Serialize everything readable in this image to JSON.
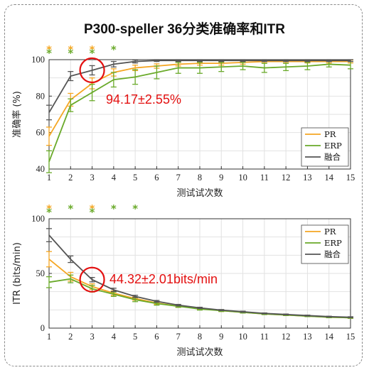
{
  "title": "P300-speller 36分类准确率和ITR",
  "colors": {
    "PR": "#f5a623",
    "ERP": "#6aaa2a",
    "Fusion": "#555555",
    "highlight": "#e31010"
  },
  "chart_data": [
    {
      "type": "line",
      "xlabel": "测试试次数",
      "ylabel": "准确率  (%)",
      "x": [
        1,
        2,
        3,
        4,
        5,
        6,
        7,
        8,
        9,
        10,
        11,
        12,
        13,
        14,
        15
      ],
      "xlim": [
        1,
        15
      ],
      "ylim": [
        40,
        100
      ],
      "yticks": [
        40,
        60,
        80,
        100
      ],
      "grid": true,
      "legend_position": "bottom-right",
      "series": [
        {
          "name": "PR",
          "color": "#f5a623",
          "values": [
            58,
            78,
            87,
            93,
            95.5,
            96.5,
            97.5,
            98,
            98,
            98.5,
            99,
            99,
            99,
            99,
            99
          ],
          "err": [
            5,
            3.5,
            3,
            2,
            1.5,
            1.2,
            1,
            1,
            1,
            1,
            0.8,
            0.8,
            0.8,
            0.8,
            0.8
          ]
        },
        {
          "name": "ERP",
          "color": "#6aaa2a",
          "values": [
            44,
            75,
            82,
            89,
            90.5,
            93,
            95.5,
            95.5,
            96,
            96.5,
            95.5,
            96,
            96.5,
            97.5,
            97
          ],
          "err": [
            6,
            3.5,
            4.5,
            4,
            4,
            3.5,
            3,
            3,
            2.5,
            2,
            2.5,
            2,
            2,
            1.5,
            2
          ]
        },
        {
          "name": "融合",
          "color": "#555555",
          "values": [
            71,
            91,
            94.17,
            97.5,
            99,
            99.5,
            99.5,
            99.5,
            99.5,
            99.5,
            99.5,
            99.5,
            99.5,
            99.5,
            99.5
          ],
          "err": [
            4,
            2.5,
            2.55,
            1.5,
            0.8,
            0.5,
            0.5,
            0.5,
            0.5,
            0.5,
            0.5,
            0.5,
            0.5,
            0.5,
            0.5
          ]
        }
      ],
      "significance": [
        {
          "x": 1,
          "stars": [
            "#f5a623",
            "#6aaa2a"
          ]
        },
        {
          "x": 2,
          "stars": [
            "#f5a623",
            "#6aaa2a"
          ]
        },
        {
          "x": 3,
          "stars": [
            "#f5a623",
            "#6aaa2a"
          ]
        },
        {
          "x": 4,
          "stars": [
            "#6aaa2a"
          ]
        }
      ],
      "annotation": {
        "text": "94.17±2.55%",
        "x": 3,
        "y": 94.17
      }
    },
    {
      "type": "line",
      "xlabel": "测试试次数",
      "ylabel": "ITR (bits/min)",
      "x": [
        1,
        2,
        3,
        4,
        5,
        6,
        7,
        8,
        9,
        10,
        11,
        12,
        13,
        14,
        15
      ],
      "xlim": [
        1,
        15
      ],
      "ylim": [
        0,
        100
      ],
      "yticks": [
        0,
        50,
        100
      ],
      "grid": true,
      "legend_position": "top-right",
      "series": [
        {
          "name": "PR",
          "color": "#f5a623",
          "values": [
            63,
            47,
            38,
            32,
            27,
            23,
            20,
            18,
            16,
            14.5,
            13,
            12,
            11,
            10,
            9.5
          ],
          "err": [
            7,
            4,
            2.5,
            2,
            1.5,
            1.2,
            1,
            0.8,
            0.8,
            0.6,
            0.6,
            0.5,
            0.5,
            0.5,
            0.5
          ]
        },
        {
          "name": "ERP",
          "color": "#6aaa2a",
          "values": [
            42,
            45,
            36,
            31,
            26,
            22.5,
            20,
            17.5,
            16,
            14.5,
            13,
            12,
            11,
            10,
            9.5
          ],
          "err": [
            5,
            3.5,
            3,
            2,
            1.8,
            1.5,
            1,
            1,
            0.8,
            0.7,
            0.6,
            0.5,
            0.5,
            0.5,
            0.5
          ]
        },
        {
          "name": "融合",
          "color": "#555555",
          "values": [
            85,
            63,
            44.32,
            35,
            29,
            24.5,
            21,
            18.5,
            16.5,
            15,
            13.5,
            12.5,
            11.5,
            10.5,
            10
          ],
          "err": [
            6,
            3,
            2.01,
            1.5,
            1,
            0.8,
            0.7,
            0.6,
            0.5,
            0.5,
            0.4,
            0.4,
            0.4,
            0.4,
            0.4
          ]
        }
      ],
      "significance": [
        {
          "x": 1,
          "stars": [
            "#f5a623",
            "#6aaa2a"
          ]
        },
        {
          "x": 2,
          "stars": [
            "#6aaa2a"
          ]
        },
        {
          "x": 3,
          "stars": [
            "#f5a623",
            "#6aaa2a"
          ]
        },
        {
          "x": 4,
          "stars": [
            "#6aaa2a"
          ]
        },
        {
          "x": 5,
          "stars": [
            "#6aaa2a"
          ]
        }
      ],
      "annotation": {
        "text": "44.32±2.01bits/min",
        "x": 3,
        "y": 44.32
      }
    }
  ]
}
